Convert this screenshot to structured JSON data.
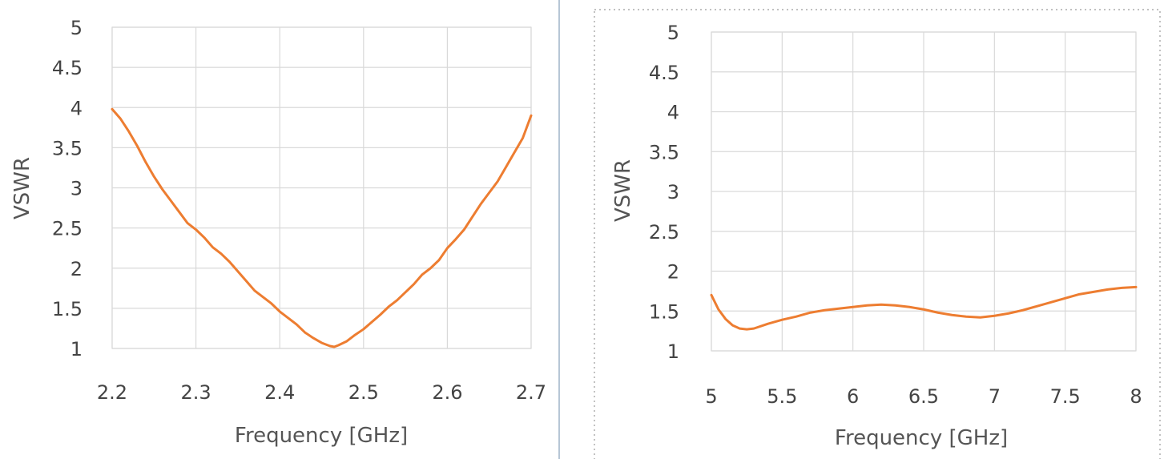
{
  "colors": {
    "series": "#ed7d31",
    "separator": "#9fb3c8",
    "dotted_border": "#9a9a9a"
  },
  "chart_data": [
    {
      "type": "line",
      "xlabel": "Frequency [GHz]",
      "ylabel": "VSWR",
      "xlim": [
        2.2,
        2.7
      ],
      "ylim": [
        1,
        5
      ],
      "xticks": [
        "2.2",
        "2.3",
        "2.4",
        "2.5",
        "2.6",
        "2.7"
      ],
      "yticks": [
        "1",
        "1.5",
        "2",
        "2.5",
        "3",
        "3.5",
        "4",
        "4.5",
        "5"
      ],
      "grid": true,
      "series": [
        {
          "x": [
            2.2,
            2.21,
            2.22,
            2.23,
            2.24,
            2.25,
            2.26,
            2.27,
            2.28,
            2.29,
            2.3,
            2.31,
            2.32,
            2.33,
            2.34,
            2.35,
            2.36,
            2.37,
            2.38,
            2.39,
            2.4,
            2.41,
            2.42,
            2.43,
            2.44,
            2.45,
            2.46,
            2.465,
            2.47,
            2.48,
            2.49,
            2.5,
            2.51,
            2.52,
            2.53,
            2.54,
            2.55,
            2.56,
            2.57,
            2.58,
            2.59,
            2.6,
            2.61,
            2.62,
            2.63,
            2.64,
            2.65,
            2.66,
            2.67,
            2.68,
            2.69,
            2.7
          ],
          "y": [
            3.98,
            3.86,
            3.7,
            3.52,
            3.32,
            3.14,
            2.98,
            2.84,
            2.7,
            2.56,
            2.48,
            2.38,
            2.26,
            2.18,
            2.08,
            1.96,
            1.84,
            1.72,
            1.64,
            1.56,
            1.46,
            1.38,
            1.3,
            1.2,
            1.13,
            1.07,
            1.03,
            1.02,
            1.04,
            1.09,
            1.17,
            1.24,
            1.33,
            1.42,
            1.52,
            1.6,
            1.7,
            1.8,
            1.92,
            2.0,
            2.1,
            2.25,
            2.36,
            2.48,
            2.64,
            2.8,
            2.94,
            3.08,
            3.26,
            3.44,
            3.62,
            3.9
          ]
        }
      ]
    },
    {
      "type": "line",
      "xlabel": "Frequency [GHz]",
      "ylabel": "VSWR",
      "xlim": [
        5,
        8
      ],
      "ylim": [
        1,
        5
      ],
      "xticks": [
        "5",
        "5.5",
        "6",
        "6.5",
        "7",
        "7.5",
        "8"
      ],
      "yticks": [
        "1",
        "1.5",
        "2",
        "2.5",
        "3",
        "3.5",
        "4",
        "4.5",
        "5"
      ],
      "grid": true,
      "series": [
        {
          "x": [
            5.0,
            5.05,
            5.1,
            5.15,
            5.2,
            5.25,
            5.3,
            5.4,
            5.5,
            5.6,
            5.7,
            5.8,
            5.9,
            6.0,
            6.1,
            6.2,
            6.3,
            6.4,
            6.5,
            6.6,
            6.7,
            6.8,
            6.9,
            7.0,
            7.1,
            7.2,
            7.3,
            7.4,
            7.5,
            7.6,
            7.7,
            7.8,
            7.9,
            8.0
          ],
          "y": [
            1.7,
            1.52,
            1.4,
            1.32,
            1.28,
            1.27,
            1.28,
            1.34,
            1.39,
            1.43,
            1.48,
            1.51,
            1.53,
            1.55,
            1.57,
            1.58,
            1.57,
            1.55,
            1.52,
            1.48,
            1.45,
            1.43,
            1.42,
            1.44,
            1.47,
            1.51,
            1.56,
            1.61,
            1.66,
            1.71,
            1.74,
            1.77,
            1.79,
            1.8
          ]
        }
      ]
    }
  ]
}
